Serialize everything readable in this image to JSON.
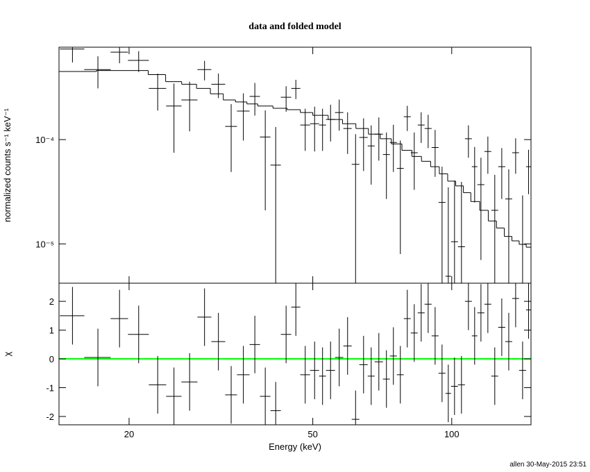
{
  "chart_data": [
    {
      "type": "errorbar",
      "title": "data and folded model",
      "ylabel": "normalized counts s⁻¹ keV⁻¹",
      "xlog": true,
      "ylog": true,
      "xlim": [
        14.1,
        148.5
      ],
      "ylim": [
        4.2e-06,
        0.00077
      ],
      "xticks": [
        20,
        50,
        100
      ],
      "show_xtick_labels": false,
      "yticks": [
        {
          "value": 0.0001,
          "label": "10⁻⁴"
        },
        {
          "value": 1e-05,
          "label": "10⁻⁵"
        }
      ],
      "series": [
        {
          "color": "#000000",
          "x": [
            15.08,
            17.12,
            19.07,
            20.98,
            23.07,
            25.02,
            27.05,
            29.14,
            31.23,
            33.28,
            35.37,
            37.45,
            39.45,
            41.56,
            43.77,
            45.95,
            48.15,
            50.46,
            52.5,
            54.64,
            57.05,
            59.48,
            61.9,
            64.42,
            66.92,
            69.52,
            72.2,
            74.75,
            77.39,
            80.12,
            82.95,
            85.87,
            88.91,
            92.05,
            95.29,
            98.3,
            101.4,
            104.98,
            108.68,
            112.11,
            115.69,
            119.75,
            123.95,
            128.35,
            132.9,
            137.55,
            142.4,
            146.7
          ],
          "x_err": [
            0.92,
            1.13,
            0.83,
            1.09,
            1.0,
            0.96,
            1.08,
            1.01,
            1.08,
            0.98,
            1.11,
            0.97,
            1.03,
            1.08,
            1.14,
            1.04,
            1.17,
            1.14,
            0.91,
            1.23,
            1.19,
            1.24,
            1.18,
            1.35,
            1.16,
            1.45,
            1.25,
            1.3,
            1.34,
            1.39,
            1.44,
            1.49,
            1.55,
            1.59,
            1.66,
            1.36,
            1.76,
            1.82,
            1.88,
            1.56,
            2.02,
            2.05,
            2.15,
            2.25,
            2.3,
            2.35,
            2.5,
            1.8
          ],
          "values": [
            0.00074,
            0.00047,
            0.00069,
            0.000575,
            0.00031,
            0.00021,
            0.00024,
            0.00047,
            0.00034,
            0.000134,
            0.000188,
            0.00026,
            0.000106,
            5.7e-05,
            0.000255,
            0.00031,
            0.000138,
            0.000142,
            0.000138,
            0.000156,
            0.000182,
            0.000128,
            5.8e-05,
            0.000105,
            8.7e-05,
            0.000113,
            7.2e-05,
            9.4e-05,
            5.3e-05,
            0.000166,
            7.5e-05,
            0.000138,
            0.000128,
            8.4e-05,
            2.5e-05,
            4.9e-06,
            1.05e-05,
            9.4e-06,
            0.000102,
            5.5e-05,
            3.7e-05,
            7.7e-05,
            2.1e-05,
            5.5e-05,
            2.7e-05,
            7.5e-05,
            4.2e-06,
            5.5e-05
          ],
          "y_err": [
            0.00019,
            0.00016,
            0.00015,
            0.00013,
            0.00012,
            0.000135,
            0.00012,
            0.0001,
            9e-05,
            8.5e-05,
            9e-05,
            9e-05,
            8.5e-05,
            7.5e-05,
            7e-05,
            6.5e-05,
            6e-05,
            6.5e-05,
            6e-05,
            6e-05,
            6e-05,
            5.5e-05,
            5.5e-05,
            5.5e-05,
            5e-05,
            5e-05,
            4.5e-05,
            4.5e-05,
            4.5e-05,
            4.5e-05,
            4.2e-05,
            4.5e-05,
            4.5e-05,
            4e-05,
            3e-05,
            3e-05,
            3e-05,
            3e-05,
            3.5e-05,
            3e-05,
            3e-05,
            3e-05,
            2.5e-05,
            2.8e-05,
            2.5e-05,
            2.8e-05,
            2.5e-05,
            2.5e-05
          ]
        }
      ],
      "model": {
        "color": "#000000",
        "edges": [
          14.1,
          17,
          20,
          22,
          24,
          26,
          28,
          30,
          32,
          34,
          36,
          38,
          41,
          44,
          47,
          50,
          54,
          58,
          62,
          66,
          70,
          74,
          78,
          82,
          86,
          90,
          94,
          98,
          102,
          106,
          110,
          115,
          120,
          125,
          130,
          135,
          140,
          145,
          148.5
        ],
        "values": [
          0.00045,
          0.00046,
          0.00046,
          0.00042,
          0.00036,
          0.00034,
          0.00031,
          0.000275,
          0.00024,
          0.00023,
          0.00022,
          0.00021,
          0.0002,
          0.000194,
          0.000182,
          0.000171,
          0.000156,
          0.000142,
          0.000128,
          0.000113,
          0.000102,
          9.1e-05,
          7.9e-05,
          6.9e-05,
          6.2e-05,
          5.5e-05,
          4.7e-05,
          4e-05,
          3.6e-05,
          3.1e-05,
          2.55e-05,
          2.1e-05,
          1.66e-05,
          1.42e-05,
          1.18e-05,
          1.07e-05,
          9.9e-06,
          9.3e-06
        ]
      }
    },
    {
      "type": "errorbar",
      "ylabel": "χ",
      "xlabel": "Energy (keV)",
      "xlog": true,
      "ylog": false,
      "xlim": [
        14.1,
        148.5
      ],
      "ylim": [
        -2.29,
        2.63
      ],
      "xticks": [
        20,
        50,
        100
      ],
      "show_xtick_labels": true,
      "yticks": [
        -2,
        -1,
        0,
        1,
        2
      ],
      "reference_line": {
        "value": 0,
        "color": "#00ff00"
      },
      "series": [
        {
          "color": "#000000",
          "x": [
            15.08,
            17.12,
            19.07,
            20.98,
            23.07,
            25.02,
            27.05,
            29.14,
            31.23,
            33.28,
            35.37,
            37.45,
            39.45,
            41.56,
            43.77,
            45.95,
            48.15,
            50.46,
            52.5,
            54.64,
            57.05,
            59.48,
            61.9,
            64.42,
            66.92,
            69.52,
            72.2,
            74.75,
            77.39,
            80.12,
            82.95,
            85.87,
            88.91,
            92.05,
            95.29,
            98.3,
            101.4,
            104.98,
            108.68,
            112.11,
            115.69,
            119.75,
            123.95,
            128.35,
            132.9,
            137.55,
            142.4,
            146.7
          ],
          "x_err": [
            0.92,
            1.13,
            0.83,
            1.09,
            1.0,
            0.96,
            1.08,
            1.01,
            1.08,
            0.98,
            1.11,
            0.97,
            1.03,
            1.08,
            1.14,
            1.04,
            1.17,
            1.14,
            0.91,
            1.23,
            1.19,
            1.24,
            1.18,
            1.35,
            1.16,
            1.45,
            1.25,
            1.3,
            1.34,
            1.39,
            1.44,
            1.49,
            1.55,
            1.59,
            1.66,
            1.36,
            1.76,
            1.82,
            1.88,
            1.56,
            2.02,
            2.05,
            2.15,
            2.25,
            2.3,
            2.35,
            2.5,
            1.8
          ],
          "values": [
            1.5,
            0.05,
            1.4,
            0.85,
            -0.9,
            -1.3,
            -0.8,
            1.45,
            0.6,
            -1.25,
            -0.55,
            0.5,
            -1.3,
            -1.8,
            0.85,
            1.8,
            -0.55,
            -0.4,
            -0.6,
            -0.4,
            0.05,
            0.45,
            -2.1,
            -0.2,
            -0.6,
            -0.1,
            -0.7,
            0.1,
            -0.55,
            1.4,
            0.9,
            1.6,
            1.9,
            0.8,
            -0.5,
            -1.2,
            -0.95,
            -0.9,
            2.0,
            0.8,
            1.6,
            1.9,
            -0.6,
            1.1,
            0.6,
            2.1,
            -0.4,
            1.7
          ],
          "y_err": [
            1,
            1,
            1,
            1,
            1,
            1,
            1,
            1,
            1,
            1,
            1,
            1,
            1,
            1,
            1,
            1,
            1,
            1,
            1,
            1,
            1,
            1,
            1,
            1,
            1,
            1,
            1,
            1,
            1,
            1,
            1,
            1,
            1,
            1,
            1,
            1,
            1,
            1,
            1,
            1,
            1,
            1,
            1,
            1,
            1,
            1,
            1,
            1
          ]
        }
      ]
    }
  ],
  "footer": "allen 30-May-2015 23:51"
}
